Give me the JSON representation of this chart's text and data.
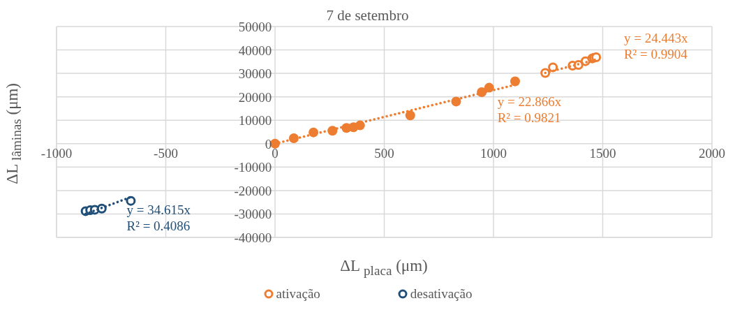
{
  "chart_data": {
    "type": "scatter",
    "title": "7 de setembro",
    "xlabel": "ΔL $_{placa}$ (μm)",
    "ylabel": "ΔL $_{lâminas}$ (μm)",
    "xlim": [
      -1000,
      2000
    ],
    "xticks": [
      -1000,
      -500,
      0,
      500,
      1000,
      1500,
      2000
    ],
    "ylim": [
      -40000,
      50000
    ],
    "yticks": [
      -40000,
      -30000,
      -20000,
      -10000,
      0,
      10000,
      20000,
      30000,
      40000,
      50000
    ],
    "grid": true,
    "legend": "bottom",
    "marker": "circle",
    "series": [
      {
        "color": "#ed7d31",
        "x": [
          0,
          86,
          176,
          263,
          327,
          359,
          389,
          619,
          829,
          946,
          980,
          1099
        ],
        "values": [
          0,
          2300,
          4800,
          5500,
          6700,
          7000,
          7800,
          12100,
          18000,
          22000,
          23900,
          26600
        ]
      },
      {
        "name": "ativação",
        "color": "#ed7d31",
        "x": [
          1237,
          1272,
          1362,
          1389,
          1421,
          1452,
          1460,
          1470
        ],
        "values": [
          30200,
          32600,
          33300,
          33600,
          35200,
          36400,
          36700,
          36900
        ]
      },
      {
        "name": "desativação",
        "color": "#1f4e79",
        "x": [
          -867,
          -846,
          -825,
          -793,
          -660
        ],
        "values": [
          -28800,
          -28400,
          -28200,
          -27700,
          -24400
        ]
      },
      {
        "type": "line",
        "line_style": "dotted",
        "marker": "none",
        "color": "#ed7d31",
        "x": [
          0,
          1099
        ],
        "values": [
          0,
          25100
        ]
      },
      {
        "type": "line",
        "line_style": "dotted",
        "marker": "none",
        "color": "#ed7d31",
        "x": [
          1237,
          1470
        ],
        "values": [
          30200,
          35900
        ]
      },
      {
        "type": "line",
        "line_style": "dotted",
        "marker": "none",
        "color": "#1f4e79",
        "x": [
          -867,
          -660
        ],
        "values": [
          -30000,
          -22800
        ]
      }
    ],
    "annotations": [
      "y = 22.866x",
      "R² = 0.9821",
      "y = 24.443x",
      "R² = 0.9904",
      "y = 34.615x",
      "R² = 0.4086"
    ]
  }
}
